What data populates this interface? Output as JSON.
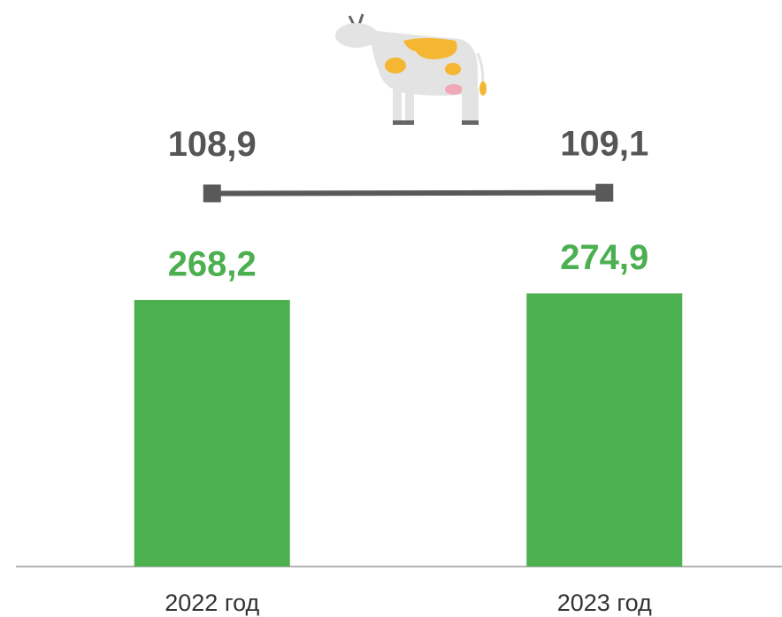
{
  "chart_data": {
    "type": "bar",
    "categories": [
      "2022 год",
      "2023 год"
    ],
    "series": [
      {
        "type": "bar",
        "color": "#4caf50",
        "values": [
          268.2,
          274.9
        ],
        "value_labels": [
          "268,2",
          "274,9"
        ]
      },
      {
        "type": "line",
        "axis": "y2",
        "color": "#595959",
        "values": [
          108.9,
          109.1
        ],
        "value_labels": [
          "108,9",
          "109,1"
        ]
      }
    ],
    "ylim": [
      0,
      400
    ],
    "y2lim": [
      0,
      116
    ]
  }
}
